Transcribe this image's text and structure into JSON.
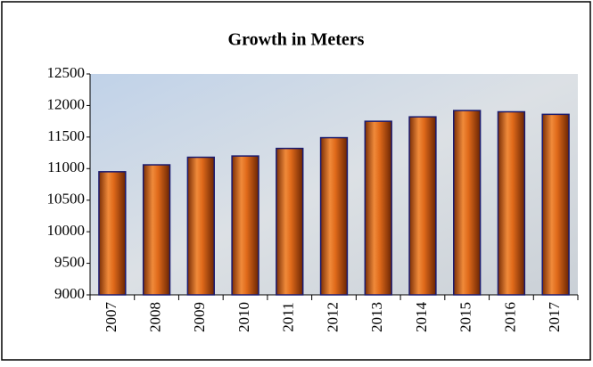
{
  "chart_data": {
    "type": "bar",
    "title": "Growth in Meters",
    "categories": [
      "2007",
      "2008",
      "2009",
      "2010",
      "2011",
      "2012",
      "2013",
      "2014",
      "2015",
      "2016",
      "2017"
    ],
    "values": [
      10950,
      11060,
      11180,
      11200,
      11320,
      11490,
      11750,
      11820,
      11920,
      11900,
      11860
    ],
    "color": "#d2691e",
    "ylim": [
      9000,
      12500
    ],
    "yticks": [
      9000,
      9500,
      10000,
      10500,
      11000,
      11500,
      12000,
      12500
    ]
  }
}
